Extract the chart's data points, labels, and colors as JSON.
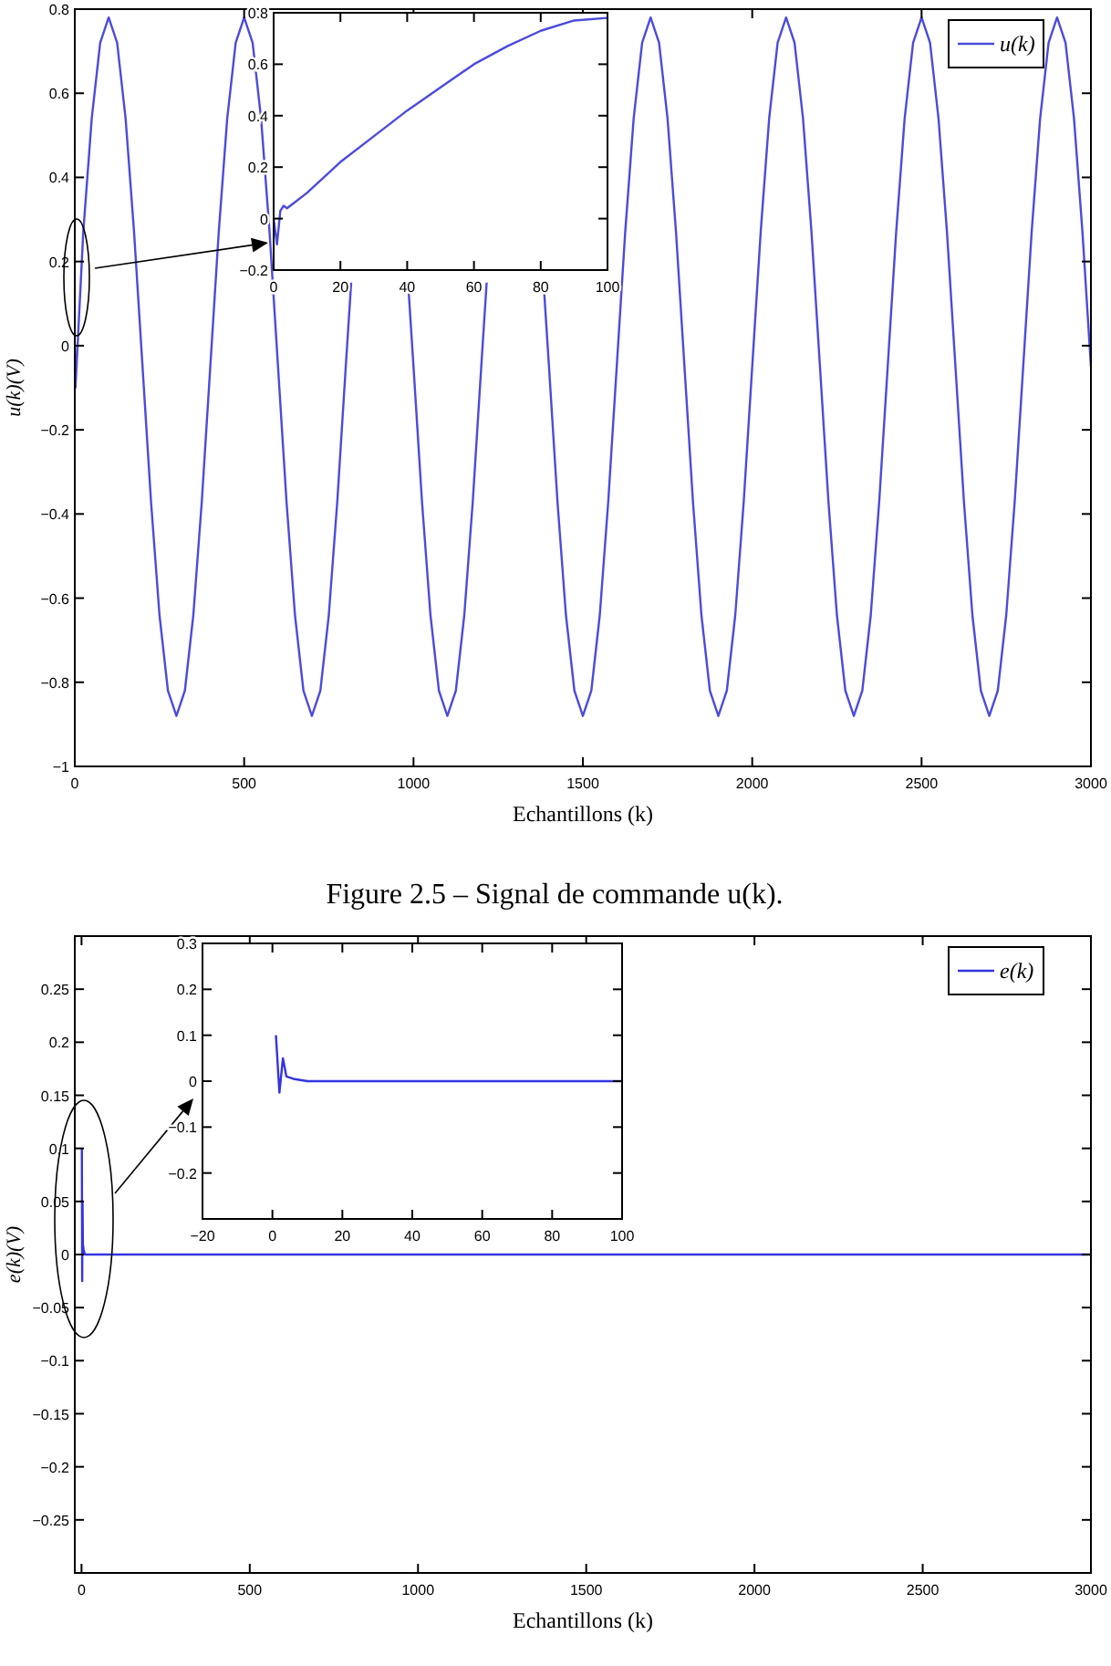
{
  "chart_data": [
    {
      "type": "line",
      "xlabel": "Echantillons (k)",
      "ylabel": "u(k)(V)",
      "legend": "top right",
      "annotations": [
        "Figure 2.5 – Signal de commande u(k)."
      ],
      "xlim": [
        0,
        3000
      ],
      "xticks": [
        0,
        500,
        1000,
        1500,
        2000,
        2500,
        3000
      ],
      "ylim": [
        -1,
        0.8
      ],
      "yticks": [
        {
          "value": -1,
          "label": "−1"
        },
        {
          "value": -0.8,
          "label": "−0.8"
        },
        {
          "value": -0.6,
          "label": "−0.6"
        },
        {
          "value": -0.4,
          "label": "−0.4"
        },
        {
          "value": -0.2,
          "label": "−0.2"
        },
        0,
        0.2,
        0.4,
        0.6,
        0.8
      ],
      "series": [
        {
          "name": "u(k)",
          "color": "#4b4bdc",
          "x": [
            0,
            2,
            25,
            50,
            75,
            100,
            125,
            150,
            175,
            200,
            225,
            250,
            275,
            300,
            325,
            350,
            375,
            400,
            425,
            450,
            475,
            500,
            525,
            550,
            575,
            600,
            625,
            650,
            675,
            700,
            725,
            750,
            775,
            800,
            816,
            850,
            875,
            900,
            925,
            950,
            984,
            1000,
            1025,
            1050,
            1075,
            1100,
            1125,
            1150,
            1175,
            1200,
            1216,
            1250,
            1275,
            1300,
            1325,
            1350,
            1384,
            1400,
            1425,
            1450,
            1475,
            1500,
            1525,
            1550,
            1575,
            1600,
            1625,
            1650,
            1675,
            1700,
            1725,
            1750,
            1775,
            1800,
            1825,
            1850,
            1875,
            1900,
            1925,
            1950,
            1975,
            2000,
            2025,
            2050,
            2075,
            2100,
            2125,
            2150,
            2175,
            2200,
            2225,
            2250,
            2275,
            2300,
            2325,
            2350,
            2375,
            2400,
            2425,
            2450,
            2475,
            2500,
            2525,
            2550,
            2575,
            2600,
            2625,
            2650,
            2675,
            2700,
            2725,
            2750,
            2775,
            2800,
            2825,
            2850,
            2875,
            2900,
            2925,
            2950,
            2975,
            3000
          ],
          "values": [
            0,
            -0.1,
            0.27,
            0.54,
            0.72,
            0.78,
            0.72,
            0.54,
            0.27,
            -0.05,
            -0.37,
            -0.64,
            -0.82,
            -0.88,
            -0.82,
            -0.64,
            -0.37,
            -0.05,
            0.27,
            0.54,
            0.72,
            0.78,
            0.72,
            0.54,
            0.27,
            -0.05,
            -0.37,
            -0.64,
            -0.82,
            -0.88,
            -0.82,
            -0.64,
            -0.37,
            -0.05,
            0.15,
            null,
            null,
            null,
            null,
            null,
            0.15,
            -0.05,
            -0.37,
            -0.64,
            -0.82,
            -0.88,
            -0.82,
            -0.64,
            -0.37,
            -0.05,
            0.15,
            null,
            null,
            null,
            null,
            null,
            0.15,
            -0.05,
            -0.37,
            -0.64,
            -0.82,
            -0.88,
            -0.82,
            -0.64,
            -0.37,
            -0.05,
            0.27,
            0.54,
            0.72,
            0.78,
            0.72,
            0.54,
            0.27,
            -0.05,
            -0.37,
            -0.64,
            -0.82,
            -0.88,
            -0.82,
            -0.64,
            -0.37,
            -0.05,
            0.27,
            0.54,
            0.72,
            0.78,
            0.72,
            0.54,
            0.27,
            -0.05,
            -0.37,
            -0.64,
            -0.82,
            -0.88,
            -0.82,
            -0.64,
            -0.37,
            -0.05,
            0.27,
            0.54,
            0.72,
            0.78,
            0.72,
            0.54,
            0.27,
            -0.05,
            -0.37,
            -0.64,
            -0.82,
            -0.88,
            -0.82,
            -0.64,
            -0.37,
            -0.05,
            0.27,
            0.54,
            0.72,
            0.78,
            0.72,
            0.54,
            0.27,
            -0.05
          ]
        }
      ]
    },
    {
      "type": "line",
      "xlim": [
        0,
        100
      ],
      "xticks": [
        0,
        20,
        40,
        60,
        80,
        100
      ],
      "ylim": [
        -0.2,
        0.8
      ],
      "yticks": [
        {
          "value": -0.2,
          "label": "−0.2"
        },
        0,
        0.2,
        0.4,
        0.6,
        0.8
      ],
      "series": [
        {
          "color": "#4b4bdc",
          "x": [
            0,
            1,
            2,
            3,
            4,
            5,
            10,
            20,
            30,
            40,
            50,
            60,
            70,
            80,
            90,
            100
          ],
          "values": [
            0,
            -0.1,
            0.03,
            0.05,
            0.04,
            0.05,
            0.1,
            0.22,
            0.32,
            0.42,
            0.51,
            0.6,
            0.67,
            0.73,
            0.77,
            0.78
          ]
        }
      ]
    },
    {
      "type": "line",
      "xlabel": "Echantillons (k)",
      "ylabel": "e(k)(V)",
      "legend": "top right",
      "xlim": [
        -20,
        3000
      ],
      "xticks": [
        0,
        500,
        1000,
        1500,
        2000,
        2500,
        3000
      ],
      "ylim": [
        -0.3,
        0.3
      ],
      "yticks": [
        {
          "value": -0.25,
          "label": "−0.25"
        },
        {
          "value": -0.2,
          "label": "−0.2"
        },
        {
          "value": -0.15,
          "label": "−0.15"
        },
        {
          "value": -0.1,
          "label": "−0.1"
        },
        {
          "value": -0.05,
          "label": "−0.05"
        },
        0,
        0.05,
        0.1,
        0.15,
        0.2,
        0.25
      ],
      "series": [
        {
          "name": "e(k)",
          "color": "#3434e0",
          "x": [
            1,
            2,
            3,
            4,
            6,
            10,
            3000
          ],
          "values": [
            0.1,
            -0.025,
            0.05,
            0.01,
            0.005,
            0,
            0
          ]
        }
      ]
    },
    {
      "type": "line",
      "xlim": [
        -20,
        100
      ],
      "xticks": [
        {
          "value": -20,
          "label": "−20"
        },
        0,
        20,
        40,
        60,
        80,
        100
      ],
      "ylim": [
        -0.3,
        0.3
      ],
      "yticks": [
        {
          "value": -0.2,
          "label": "−0.2"
        },
        {
          "value": -0.1,
          "label": "−0.1"
        },
        0,
        0.1,
        0.2,
        0.3
      ],
      "series": [
        {
          "color": "#3434e0",
          "x": [
            1,
            2,
            3,
            4,
            6,
            10,
            100
          ],
          "values": [
            0.1,
            -0.025,
            0.05,
            0.01,
            0.005,
            0,
            0
          ]
        }
      ]
    }
  ]
}
